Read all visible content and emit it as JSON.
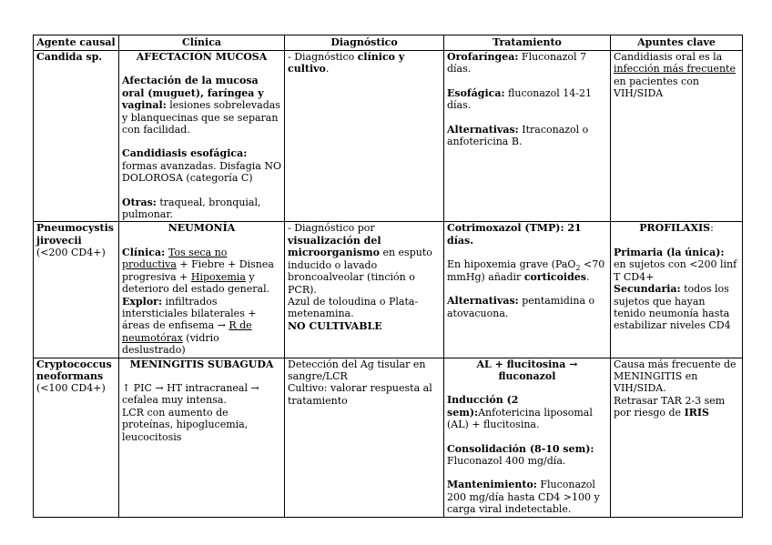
{
  "table": {
    "headers": [
      "Agente causal",
      "Clínica",
      "Diagnóstico",
      "Tratamiento",
      "Apuntes clave"
    ],
    "rows": [
      {
        "cells": [
          [
            {
              "seg": [
                {
                  "t": "Candida sp.",
                  "b": true
                }
              ]
            }
          ],
          [
            {
              "center": true,
              "seg": [
                {
                  "t": "AFECTACIÓN MUCOSA",
                  "b": true
                }
              ]
            },
            {
              "seg": []
            },
            {
              "seg": [
                {
                  "t": "Afectación de la mucosa oral (muguet), faríngea y vaginal:",
                  "b": true
                },
                {
                  "t": " lesiones sobrelevadas y blanquecinas que se separan con facilidad."
                }
              ]
            },
            {
              "seg": []
            },
            {
              "seg": [
                {
                  "t": "Candidiasis esofágica:",
                  "b": true
                },
                {
                  "t": " formas avanzadas. Disfagia NO DOLOROSA (categoría C)"
                }
              ]
            },
            {
              "seg": []
            },
            {
              "seg": [
                {
                  "t": "Otras:",
                  "b": true
                },
                {
                  "t": " traqueal, bronquial, pulmonar."
                }
              ]
            }
          ],
          [
            {
              "seg": [
                {
                  "t": "- Diagnóstico "
                },
                {
                  "t": "clínico y cultivo",
                  "b": true
                },
                {
                  "t": "."
                }
              ]
            }
          ],
          [
            {
              "seg": [
                {
                  "t": "Orofaríngea:",
                  "b": true
                },
                {
                  "t": " Fluconazol 7 días."
                }
              ]
            },
            {
              "seg": []
            },
            {
              "seg": [
                {
                  "t": "Esofágica:",
                  "b": true
                },
                {
                  "t": " fluconazol 14-21 días."
                }
              ]
            },
            {
              "seg": []
            },
            {
              "seg": [
                {
                  "t": "Alternativas:",
                  "b": true
                },
                {
                  "t": " Itraconazol o anfotericina B."
                }
              ]
            }
          ],
          [
            {
              "seg": [
                {
                  "t": "Candidiasis oral es la "
                },
                {
                  "t": "infección más frecuente",
                  "u": true
                },
                {
                  "t": " en pacientes con VIH/SIDA"
                }
              ]
            }
          ]
        ]
      },
      {
        "cells": [
          [
            {
              "seg": [
                {
                  "t": "Pneumocystis jirovecii",
                  "b": true
                }
              ]
            },
            {
              "seg": [
                {
                  "t": "(<200 CD4+)"
                }
              ]
            }
          ],
          [
            {
              "center": true,
              "seg": [
                {
                  "t": "NEUMONÍA",
                  "b": true
                }
              ]
            },
            {
              "seg": []
            },
            {
              "seg": [
                {
                  "t": "Clínica: ",
                  "b": true
                },
                {
                  "t": "Tos seca no productiva",
                  "u": true
                },
                {
                  "t": " + Fiebre + Disnea progresiva + "
                },
                {
                  "t": "Hipoxemia",
                  "u": true
                },
                {
                  "t": " y deterioro del estado general."
                }
              ]
            },
            {
              "seg": [
                {
                  "t": "Explor:",
                  "b": true
                },
                {
                  "t": " infiltrados intersticiales bilaterales + áreas de enfisema → "
                },
                {
                  "t": "R de neumotórax",
                  "u": true
                },
                {
                  "t": " (vidrio deslustrado)"
                }
              ]
            }
          ],
          [
            {
              "seg": [
                {
                  "t": "- Diagnóstico por "
                },
                {
                  "t": "visualización del microorganismo",
                  "b": true
                },
                {
                  "t": " en esputo inducido o lavado broncoalveolar (tinción o PCR)."
                }
              ]
            },
            {
              "seg": [
                {
                  "t": "Azul de toloudina o Plata-metenamina."
                }
              ]
            },
            {
              "seg": [
                {
                  "t": "NO CULTIVABLE",
                  "b": true
                }
              ]
            }
          ],
          [
            {
              "seg": [
                {
                  "t": "Cotrimoxazol (TMP): 21 días.",
                  "b": true
                }
              ]
            },
            {
              "seg": []
            },
            {
              "seg": [
                {
                  "t": "En hipoxemia grave (PaO"
                },
                {
                  "t": "2",
                  "s": true
                },
                {
                  "t": " <70 mmHg) añadir "
                },
                {
                  "t": "corticoides",
                  "b": true
                },
                {
                  "t": "."
                }
              ]
            },
            {
              "seg": []
            },
            {
              "seg": [
                {
                  "t": "Alternativas:",
                  "b": true
                },
                {
                  "t": " pentamidina o atovacuona."
                }
              ]
            }
          ],
          [
            {
              "center": true,
              "seg": [
                {
                  "t": "PROFILAXIS",
                  "b": true
                },
                {
                  "t": ":"
                }
              ]
            },
            {
              "seg": []
            },
            {
              "seg": [
                {
                  "t": "Primaria (la única):",
                  "b": true
                },
                {
                  "t": " en sujetos con <200 linf T CD4+"
                }
              ]
            },
            {
              "seg": [
                {
                  "t": "Secundaria:",
                  "b": true
                },
                {
                  "t": " todos los sujetos que hayan tenido neumonía hasta estabilizar niveles CD4"
                }
              ]
            }
          ]
        ]
      },
      {
        "cells": [
          [
            {
              "seg": [
                {
                  "t": "Cryptococcus neoformans",
                  "b": true
                }
              ]
            },
            {
              "seg": [
                {
                  "t": "(<100 CD4+)"
                }
              ]
            }
          ],
          [
            {
              "center": true,
              "seg": [
                {
                  "t": "MENINGITIS SUBAGUDA",
                  "b": true
                }
              ]
            },
            {
              "seg": []
            },
            {
              "seg": [
                {
                  "t": "↑ PIC → HT intracraneal → cefalea muy intensa."
                }
              ]
            },
            {
              "seg": [
                {
                  "t": "LCR con aumento de proteínas, hipoglucemia, leucocitosis"
                }
              ]
            }
          ],
          [
            {
              "seg": [
                {
                  "t": "Detección del Ag tisular en sangre/LCR"
                }
              ]
            },
            {
              "seg": [
                {
                  "t": "Cultivo: valorar respuesta al tratamiento"
                }
              ]
            }
          ],
          [
            {
              "center": true,
              "seg": [
                {
                  "t": "AL + flucitosina → fluconazol",
                  "b": true
                }
              ]
            },
            {
              "seg": []
            },
            {
              "seg": [
                {
                  "t": "Inducción (2 sem):",
                  "b": true
                },
                {
                  "t": "Anfotericina liposomal (AL) + flucitosina."
                }
              ]
            },
            {
              "seg": []
            },
            {
              "seg": [
                {
                  "t": "Consolidación (8-10 sem):",
                  "b": true
                },
                {
                  "t": " Fluconazol 400 mg/día."
                }
              ]
            },
            {
              "seg": []
            },
            {
              "seg": [
                {
                  "t": "Mantenimiento:",
                  "b": true
                },
                {
                  "t": " Fluconazol 200 mg/día hasta CD4 >100 y carga viral indetectable."
                }
              ]
            }
          ],
          [
            {
              "seg": [
                {
                  "t": "Causa más frecuente de MENINGITIS en VIH/SIDA."
                }
              ]
            },
            {
              "seg": [
                {
                  "t": "Retrasar TAR 2-3 sem por riesgo de "
                },
                {
                  "t": "IRIS",
                  "b": true
                }
              ]
            }
          ]
        ]
      }
    ]
  }
}
